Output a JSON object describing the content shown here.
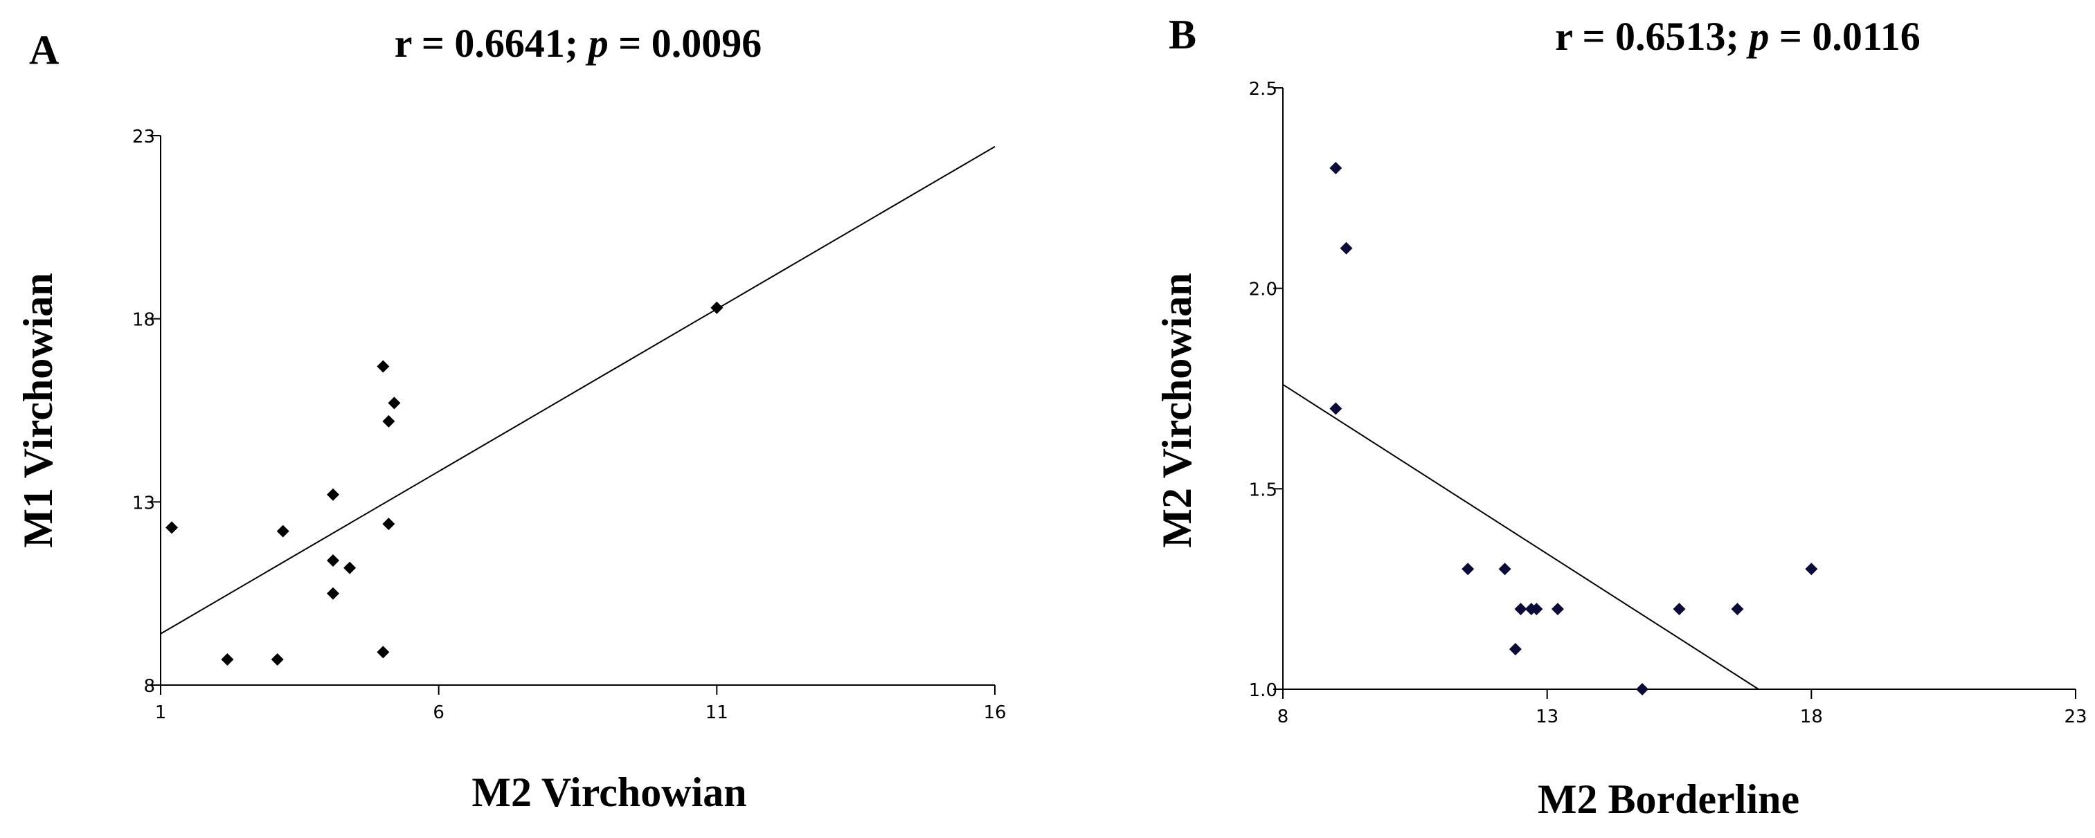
{
  "chart_data": [
    {
      "type": "scatter",
      "panel": "A",
      "title_prefix": "r = 0.6641; ",
      "title_italic": "p",
      "title_suffix": " = 0.0096",
      "xlabel": "M2 Virchowian",
      "ylabel": "M1 Virchowian",
      "xlim": [
        1,
        16
      ],
      "ylim": [
        8,
        23
      ],
      "xticks": [
        "1",
        "6",
        "11",
        "16"
      ],
      "yticks": [
        "8",
        "13",
        "18",
        "23"
      ],
      "points": [
        {
          "x": 1.2,
          "y": 12.3
        },
        {
          "x": 2.2,
          "y": 8.7
        },
        {
          "x": 3.1,
          "y": 8.7
        },
        {
          "x": 3.2,
          "y": 12.2
        },
        {
          "x": 4.1,
          "y": 13.2
        },
        {
          "x": 4.1,
          "y": 11.4
        },
        {
          "x": 4.1,
          "y": 10.5
        },
        {
          "x": 4.4,
          "y": 11.2
        },
        {
          "x": 5.0,
          "y": 16.7
        },
        {
          "x": 5.1,
          "y": 15.2
        },
        {
          "x": 5.2,
          "y": 15.7
        },
        {
          "x": 5.1,
          "y": 12.4
        },
        {
          "x": 5.0,
          "y": 8.9
        },
        {
          "x": 11.0,
          "y": 18.3
        }
      ],
      "regression": [
        {
          "x": 1,
          "y": 9.4
        },
        {
          "x": 16,
          "y": 22.7
        }
      ],
      "point_color": "#000000"
    },
    {
      "type": "scatter",
      "panel": "B",
      "title_prefix": "r = 0.6513; ",
      "title_italic": "p",
      "title_suffix": " = 0.0116",
      "xlabel": "M2 Borderline",
      "ylabel": "M2 Virchowian",
      "xlim": [
        8,
        23
      ],
      "ylim": [
        1.0,
        2.5
      ],
      "xticks": [
        "8",
        "13",
        "18",
        "23"
      ],
      "yticks": [
        "1.0",
        "1.5",
        "2.0",
        "2.5"
      ],
      "points": [
        {
          "x": 9.0,
          "y": 2.3
        },
        {
          "x": 9.2,
          "y": 2.1
        },
        {
          "x": 9.0,
          "y": 1.7
        },
        {
          "x": 11.5,
          "y": 1.3
        },
        {
          "x": 12.2,
          "y": 1.3
        },
        {
          "x": 12.4,
          "y": 1.1
        },
        {
          "x": 12.5,
          "y": 1.2
        },
        {
          "x": 12.7,
          "y": 1.2
        },
        {
          "x": 12.8,
          "y": 1.2
        },
        {
          "x": 13.2,
          "y": 1.2
        },
        {
          "x": 14.8,
          "y": 1.0
        },
        {
          "x": 15.5,
          "y": 1.2
        },
        {
          "x": 16.6,
          "y": 1.2
        },
        {
          "x": 18.0,
          "y": 1.3
        }
      ],
      "regression": [
        {
          "x": 8,
          "y": 1.76
        },
        {
          "x": 17.0,
          "y": 1.0
        }
      ],
      "point_color": "#0b0b3a"
    }
  ]
}
